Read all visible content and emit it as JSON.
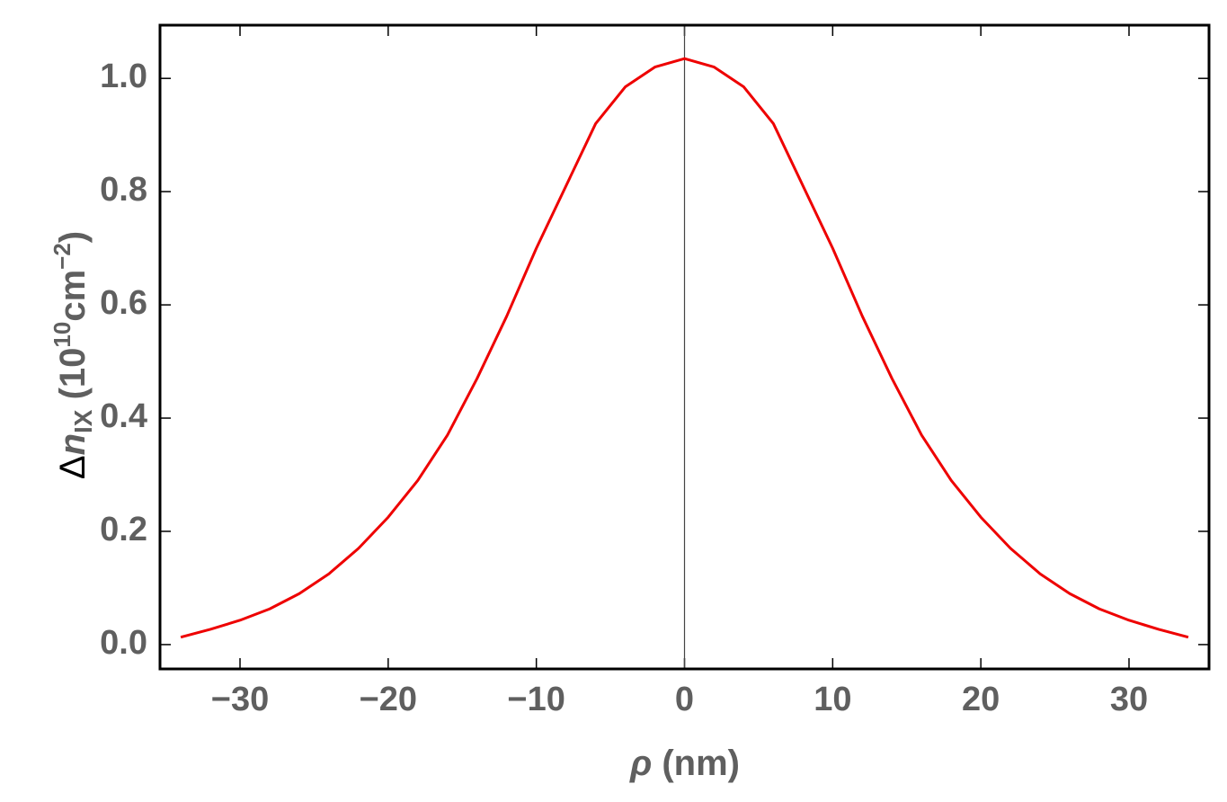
{
  "chart_data": {
    "type": "line",
    "xlabel_parts": [
      "ρ",
      " (nm)"
    ],
    "ylabel_parts": [
      "Δ",
      "n",
      "IX",
      " (10",
      "10",
      "cm",
      "−2",
      ")"
    ],
    "x": [
      -34,
      -32,
      -30,
      -28,
      -26,
      -24,
      -22,
      -20,
      -18,
      -16,
      -14,
      -12,
      -10,
      -8,
      -6,
      -4,
      -2,
      0,
      2,
      4,
      6,
      8,
      10,
      12,
      14,
      16,
      18,
      20,
      22,
      24,
      26,
      28,
      30,
      32,
      34
    ],
    "series": [
      {
        "color": "#ee0000",
        "values": [
          0.013,
          0.027,
          0.043,
          0.063,
          0.09,
          0.125,
          0.17,
          0.225,
          0.29,
          0.37,
          0.47,
          0.58,
          0.7,
          0.81,
          0.92,
          0.985,
          1.02,
          1.035,
          1.02,
          0.985,
          0.92,
          0.81,
          0.7,
          0.58,
          0.47,
          0.37,
          0.29,
          0.225,
          0.17,
          0.125,
          0.09,
          0.063,
          0.043,
          0.027,
          0.013
        ]
      }
    ],
    "xlim": [
      -35.4,
      35.4
    ],
    "ylim": [
      -0.043,
      1.094
    ],
    "xticks": [
      {
        "value": -30,
        "label": "−30"
      },
      {
        "value": -20,
        "label": "−20"
      },
      {
        "value": -10,
        "label": "−10"
      },
      0,
      10,
      20,
      30
    ],
    "yticks": [
      {
        "value": 0,
        "label": "0.0"
      },
      0.2,
      0.4,
      0.6,
      0.8,
      {
        "value": 1,
        "label": "1.0"
      }
    ],
    "frame": true
  }
}
